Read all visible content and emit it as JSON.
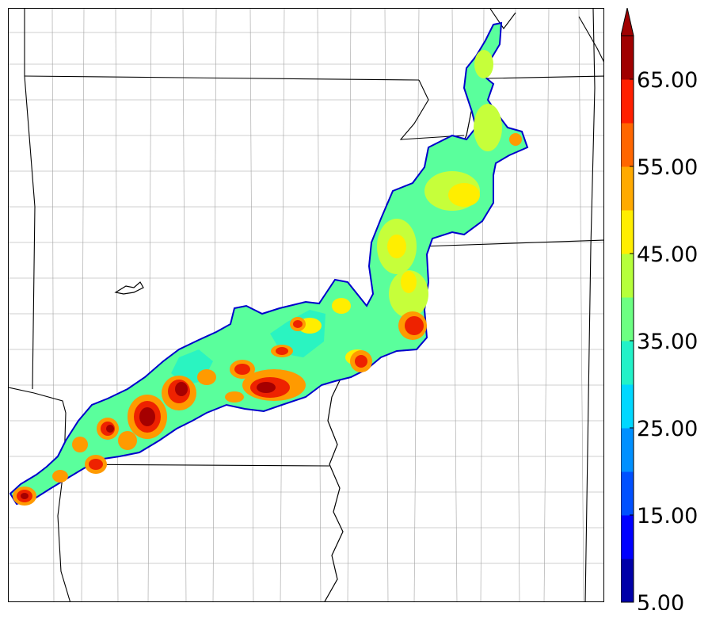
{
  "map": {
    "layer_name": "",
    "field_colors": {
      "edge": "#0000cc",
      "low": "#59ff9f",
      "mid": "#c6ff3a",
      "high_yellow": "#ffee00",
      "orange": "#ff9a00",
      "red": "#ee2200",
      "dark_red": "#a50000"
    },
    "boundary_color": "#000000",
    "county_color": "#9a9a9a"
  },
  "colorbar": {
    "min": 5,
    "max": 70,
    "step": 5,
    "extend": "max",
    "colors": [
      "#0000a8",
      "#0000ff",
      "#0050ff",
      "#0090ff",
      "#00d8ff",
      "#22f2c8",
      "#6cff82",
      "#b6ff3a",
      "#ffee00",
      "#ffaa00",
      "#ff6600",
      "#ff1f00",
      "#a00000"
    ],
    "tick_labels": [
      "5.00",
      "15.00",
      "25.00",
      "35.00",
      "45.00",
      "55.00",
      "65.00"
    ]
  }
}
